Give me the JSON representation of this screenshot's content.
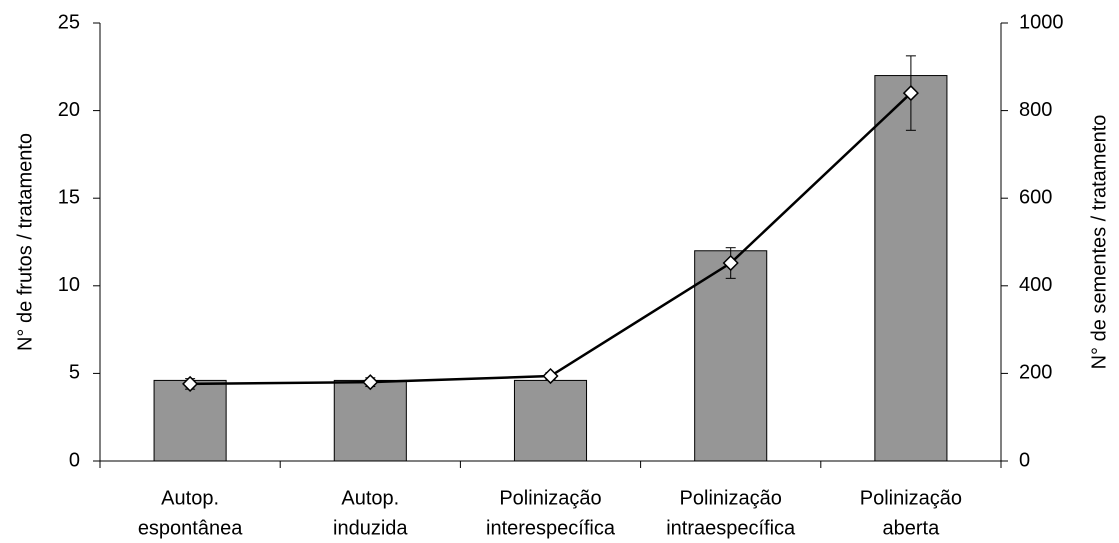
{
  "chart_data": {
    "type": "bar",
    "categories": [
      [
        "Autop.",
        "espontânea"
      ],
      [
        "Autop.",
        "induzida"
      ],
      [
        "Polinização",
        "interespecífica"
      ],
      [
        "Polinização",
        "intraespecífica"
      ],
      [
        "Polinização",
        "aberta"
      ]
    ],
    "series": [
      {
        "type": "bar",
        "color": "#969696",
        "values": [
          4.6,
          4.6,
          4.6,
          12,
          22
        ]
      },
      {
        "type": "line",
        "axis": "y2",
        "color": "#000000",
        "values": [
          176,
          180,
          194,
          452,
          840
        ],
        "errors": [
          12,
          10,
          8,
          35,
          85
        ]
      }
    ],
    "ylabel": "N° de frutos / tratamento",
    "y2label": "N° de sementes / tratamento",
    "ylim": [
      0,
      25
    ],
    "yticks": [
      0,
      5,
      10,
      15,
      20,
      25
    ],
    "y2lim": [
      0,
      1000
    ],
    "y2ticks": [
      0,
      200,
      400,
      600,
      800,
      1000
    ]
  }
}
